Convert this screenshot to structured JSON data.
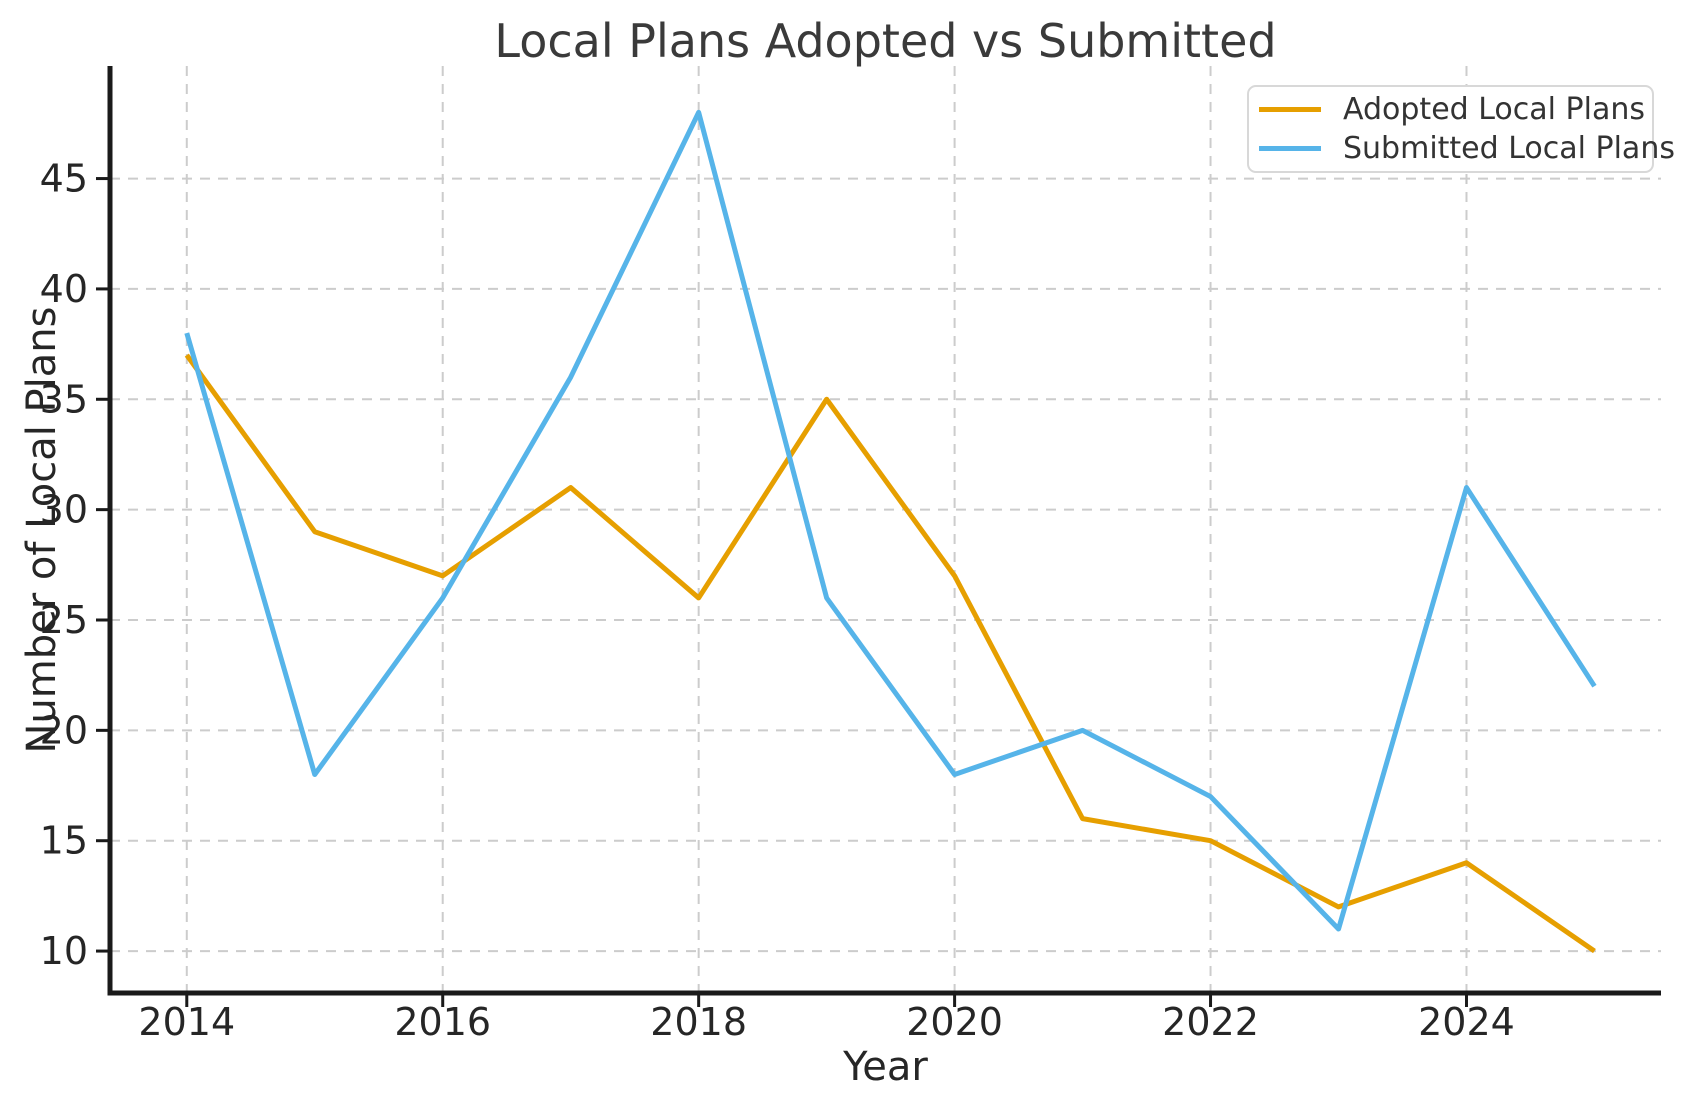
{
  "chart_data": {
    "type": "line",
    "title": "Local Plans Adopted vs Submitted",
    "xlabel": "Year",
    "ylabel": "Number of Local Plans",
    "x": [
      2014,
      2015,
      2016,
      2017,
      2018,
      2019,
      2020,
      2021,
      2022,
      2023,
      2024,
      2025
    ],
    "series": [
      {
        "name": "Adopted Local Plans",
        "color": "#E69F00",
        "values": [
          37,
          29,
          27,
          31,
          26,
          35,
          27,
          16,
          15,
          12,
          14,
          10
        ]
      },
      {
        "name": "Submitted Local Plans",
        "color": "#56B4E9",
        "values": [
          38,
          18,
          26,
          36,
          48,
          26,
          18,
          20,
          17,
          11,
          31,
          22
        ]
      }
    ],
    "x_ticks": [
      2014,
      2016,
      2018,
      2020,
      2022,
      2024
    ],
    "y_ticks": [
      10,
      15,
      20,
      25,
      30,
      35,
      40,
      45
    ],
    "xlim": [
      2013.4,
      2025.52
    ],
    "ylim": [
      8.1,
      50.1
    ],
    "grid": "dashed",
    "legend_position": "upper-right",
    "colors": {
      "grid": "#cccccc",
      "axis": "#1a1a1a",
      "text": "#262626",
      "title_text": "#3a3a3a"
    }
  }
}
